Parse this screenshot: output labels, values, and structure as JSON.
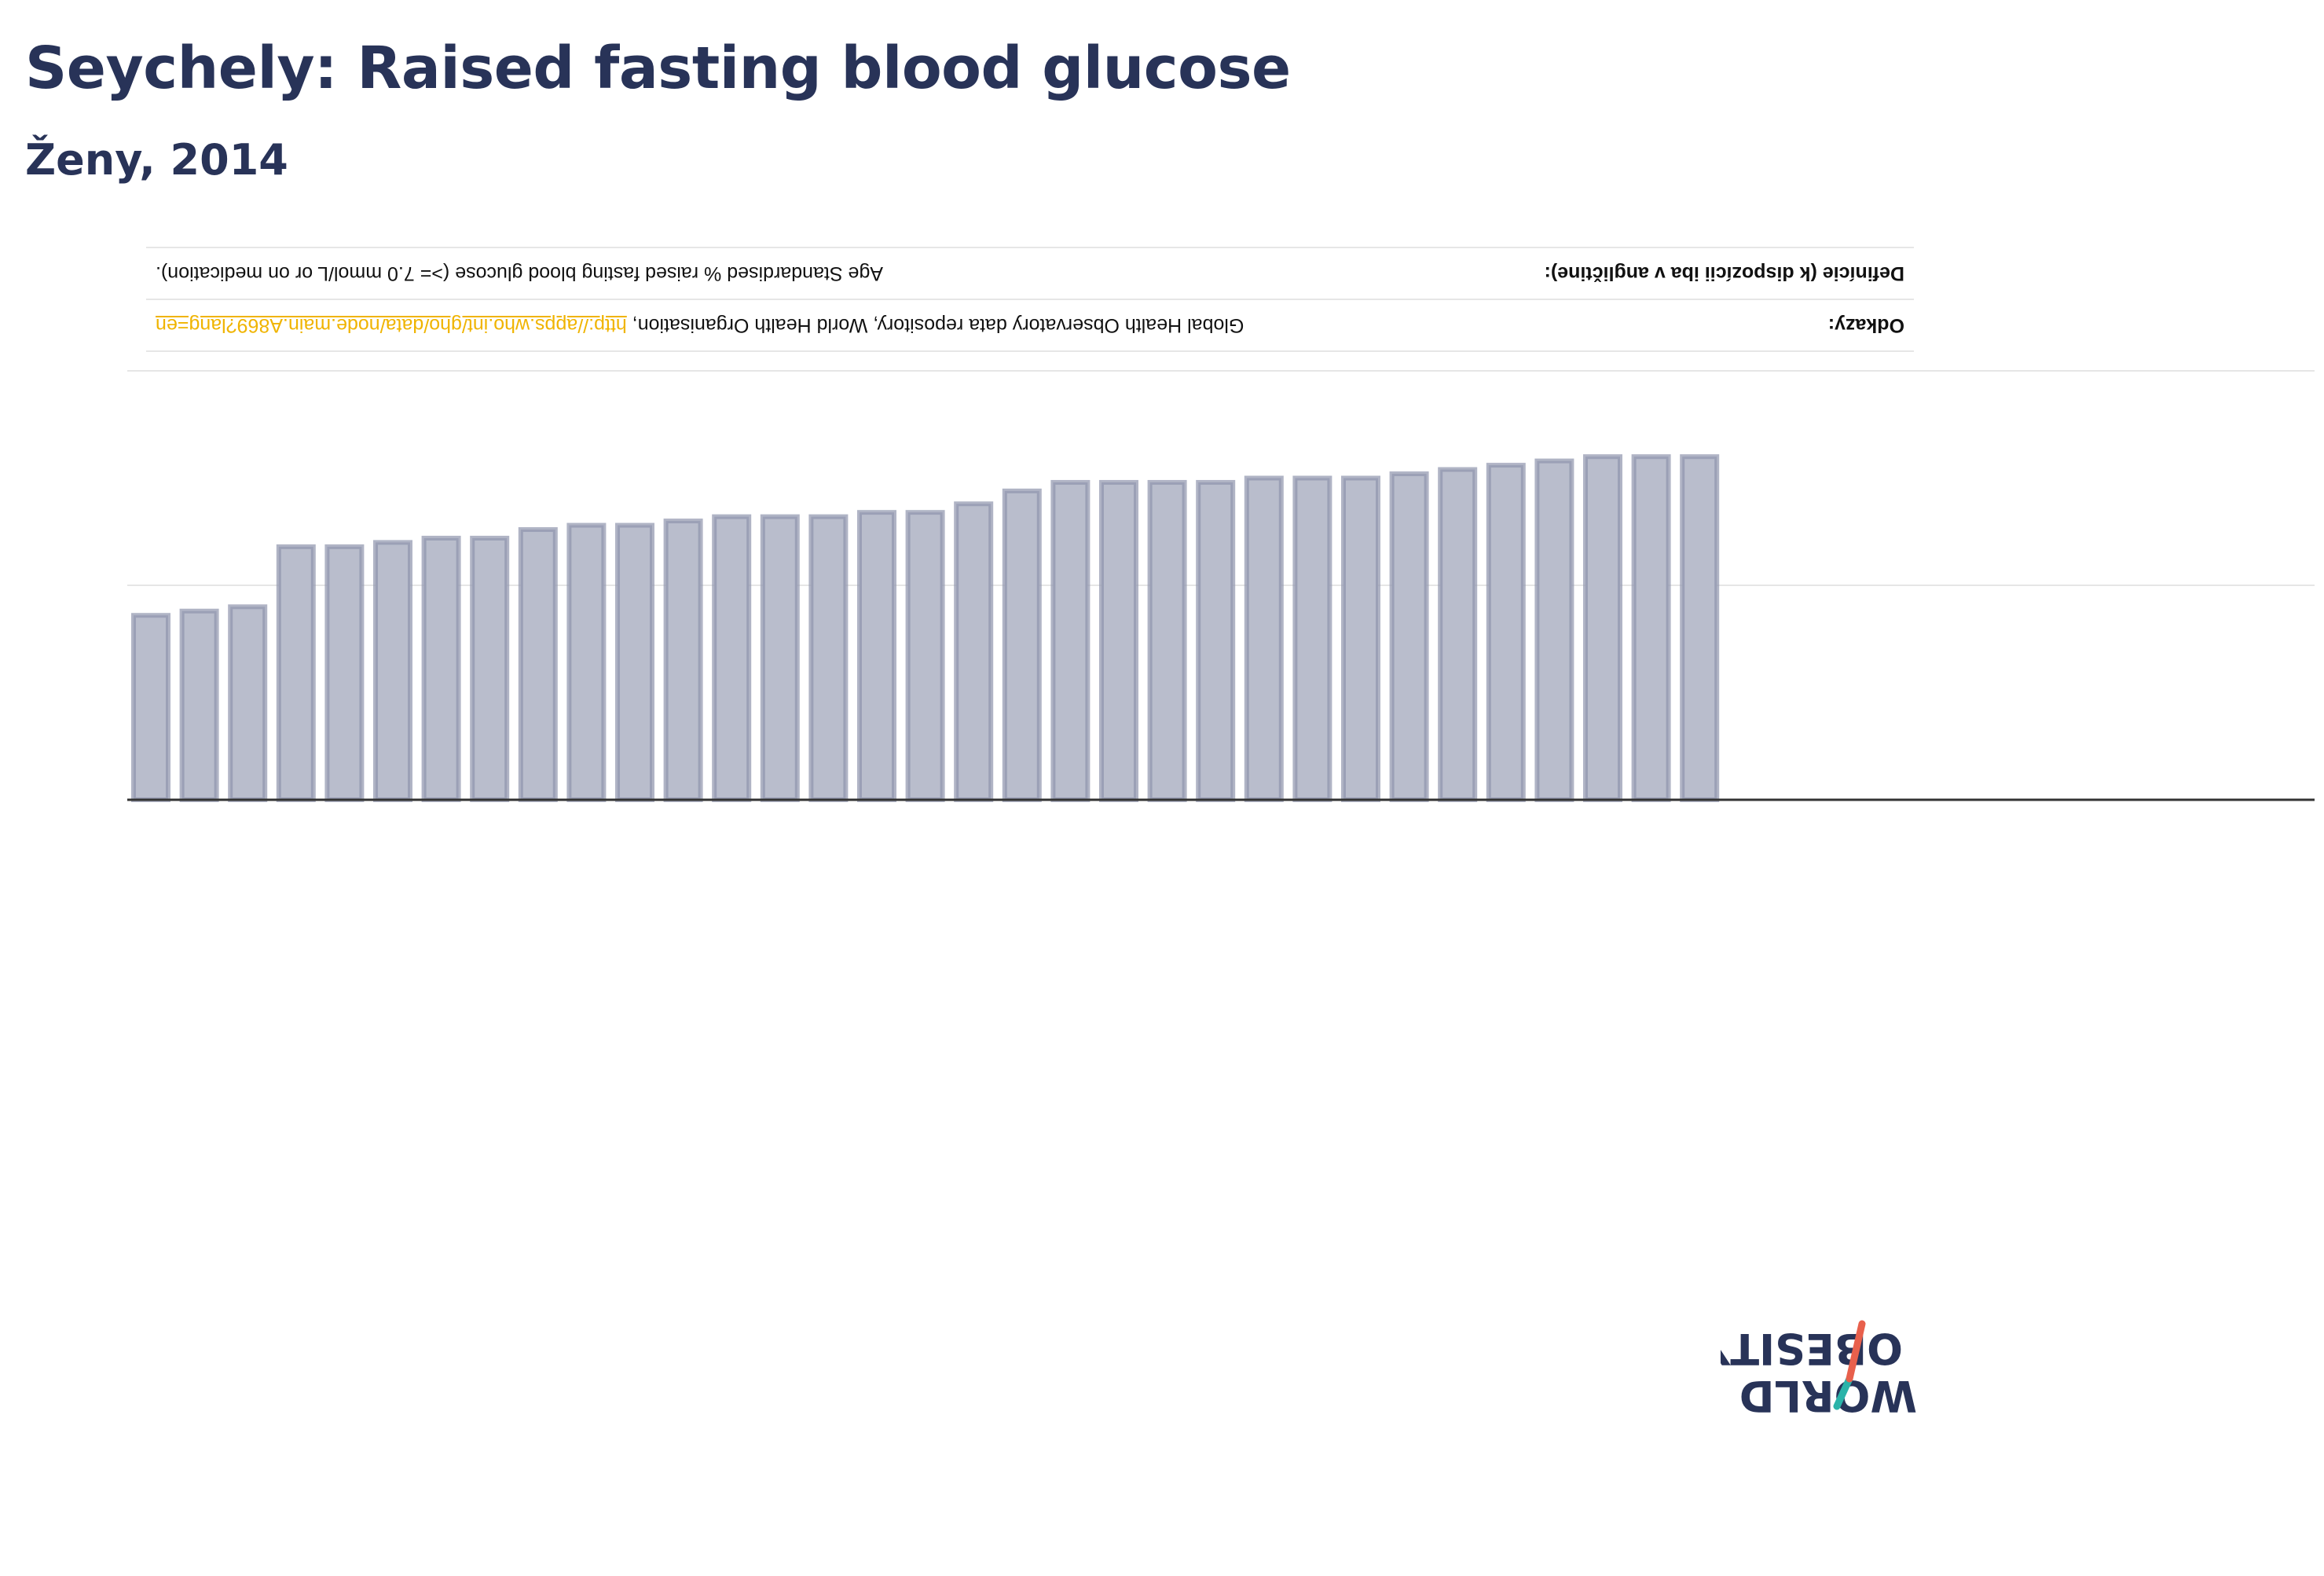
{
  "title": "Seychely: Raised fasting blood glucose",
  "subtitle": "Ženy, 2014",
  "info": {
    "definition_label": "Definície (k dispozícii iba v angličtine):",
    "definition_value": "Age Standardised % raised fasting blood glucose (>= 7.0 mmol/L or on medication).",
    "references_label": "Odkazy:",
    "references_value": "Global Health Observatory data repository, World Health Organisation, ",
    "references_link": "http://apps.who.int/gho/data/node.main.A869?lang=en"
  },
  "logo": {
    "line1": "OBESITY",
    "line2": "WORLD",
    "text_color": "#283358",
    "slash_color_top": "#e8604c",
    "slash_color_bottom": "#2bb3a9"
  },
  "colors": {
    "bar_fill": "#b9bdcc",
    "bar_stroke": "#8e94ad",
    "axis": "#333333",
    "grid": "#e6e6e6",
    "title": "#283358"
  },
  "chart_data": {
    "type": "bar",
    "orientation": "inverted",
    "values": [
      8.6,
      8.8,
      9.0,
      11.8,
      11.8,
      12.0,
      12.2,
      12.2,
      12.6,
      12.8,
      12.8,
      13.0,
      13.2,
      13.2,
      13.2,
      13.4,
      13.4,
      13.8,
      14.4,
      14.8,
      14.8,
      14.8,
      14.8,
      15.0,
      15.0,
      15.0,
      15.2,
      15.4,
      15.6,
      15.8,
      16.0,
      16.0,
      16.0
    ],
    "ylim": [
      0,
      20
    ],
    "grid": true
  }
}
